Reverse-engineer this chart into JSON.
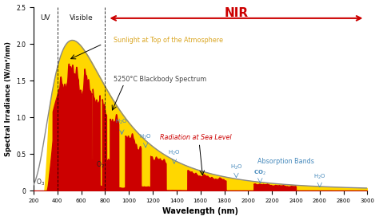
{
  "xlabel": "Wavelength (nm)",
  "ylabel": "Spectral Irradiance (W/m²/nm)",
  "xlim": [
    200,
    3000
  ],
  "ylim": [
    0,
    2.5
  ],
  "yticks": [
    0,
    0.5,
    1.0,
    1.5,
    2.0,
    2.5
  ],
  "xticks": [
    200,
    400,
    600,
    800,
    1000,
    1200,
    1400,
    1600,
    1800,
    2000,
    2200,
    2400,
    2600,
    2800,
    3000
  ],
  "uv_line": 400,
  "visible_line": 800,
  "background_color": "#ffffff",
  "yellow_color": "#FFD700",
  "red_color": "#CC0000",
  "blackbody_color": "#888888",
  "nir_color": "#CC0000",
  "uv_label_color": "#222222",
  "visible_label_color": "#222222",
  "atm_label_color": "#DAA520",
  "sea_label_color": "#CC0000",
  "blackbody_label_color": "#444444",
  "absorption_label_color": "#4488BB",
  "o3_label_color": "#222222",
  "o2_label_color": "#222222"
}
